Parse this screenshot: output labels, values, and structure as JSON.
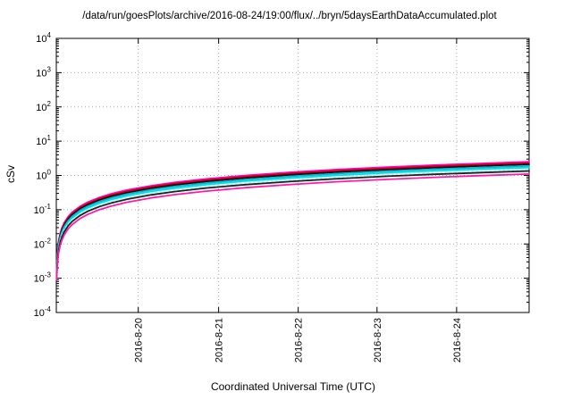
{
  "chart_data": {
    "type": "line",
    "title": "/data/run/goesPlots/archive/2016-08-24/19:00/flux/../bryn/5daysEarthDataAccumulated.plot",
    "xlabel": "Coordinated Universal Time (UTC)",
    "ylabel": "cSv",
    "y_scale": "log10",
    "ylim_exponents": [
      -4,
      4
    ],
    "y_ticks_exponents": [
      4,
      3,
      2,
      1,
      0,
      -1,
      -2,
      -3,
      -4
    ],
    "x_domain_days": [
      0,
      6
    ],
    "x_ticks": [
      {
        "t": 1.04,
        "label": "2016-8-20"
      },
      {
        "t": 2.06,
        "label": "2016-8-21"
      },
      {
        "t": 3.07,
        "label": "2016-8-22"
      },
      {
        "t": 4.07,
        "label": "2016-8-23"
      },
      {
        "t": 5.08,
        "label": "2016-8-24"
      }
    ],
    "grid": true,
    "legend": "none",
    "x_days": [
      0.005,
      0.01,
      0.02,
      0.03,
      0.05,
      0.07,
      0.1,
      0.15,
      0.2,
      0.3,
      0.4,
      0.55,
      0.7,
      0.9,
      1.2,
      1.5,
      1.9,
      2.4,
      3.0,
      3.6,
      4.2,
      4.8,
      5.4,
      6.0
    ],
    "series": [
      {
        "name": "upper-magenta",
        "color": "#ff00c8",
        "dash": null,
        "values": [
          0.00208,
          0.00417,
          0.00833,
          0.0125,
          0.0208,
          0.0292,
          0.0417,
          0.0625,
          0.0833,
          0.125,
          0.167,
          0.229,
          0.292,
          0.375,
          0.5,
          0.625,
          0.792,
          1.0,
          1.25,
          1.5,
          1.75,
          2.0,
          2.25,
          2.5
        ]
      },
      {
        "name": "red",
        "color": "#d40000",
        "dash": null,
        "values": [
          0.00192,
          0.00383,
          0.00767,
          0.0115,
          0.0192,
          0.0268,
          0.0383,
          0.0575,
          0.0767,
          0.115,
          0.153,
          0.211,
          0.268,
          0.345,
          0.46,
          0.575,
          0.728,
          0.92,
          1.15,
          1.38,
          1.61,
          1.84,
          2.07,
          2.3
        ]
      },
      {
        "name": "upper-black",
        "color": "#101010",
        "dash": null,
        "values": [
          0.00175,
          0.0035,
          0.007,
          0.0105,
          0.0175,
          0.0245,
          0.035,
          0.0525,
          0.07,
          0.105,
          0.14,
          0.1925,
          0.245,
          0.315,
          0.42,
          0.525,
          0.665,
          0.84,
          1.05,
          1.26,
          1.47,
          1.68,
          1.89,
          2.1
        ]
      },
      {
        "name": "cyan",
        "color": "#00b4d8",
        "dash": null,
        "values": [
          0.00158,
          0.00317,
          0.00633,
          0.0095,
          0.0158,
          0.0222,
          0.0317,
          0.0475,
          0.0633,
          0.095,
          0.127,
          0.174,
          0.222,
          0.285,
          0.38,
          0.475,
          0.602,
          0.76,
          0.95,
          1.14,
          1.33,
          1.52,
          1.71,
          1.9
        ]
      },
      {
        "name": "bright-cyan",
        "color": "#00e0e0",
        "dash": null,
        "values": [
          0.00142,
          0.00283,
          0.00567,
          0.0085,
          0.0142,
          0.0198,
          0.0283,
          0.0425,
          0.0567,
          0.085,
          0.113,
          0.156,
          0.198,
          0.255,
          0.34,
          0.425,
          0.538,
          0.68,
          0.85,
          1.02,
          1.19,
          1.36,
          1.53,
          1.7
        ]
      },
      {
        "name": "pale-dotted",
        "color": "#bfeff2",
        "dash": "2,3",
        "values": [
          0.00125,
          0.0025,
          0.005,
          0.0075,
          0.0125,
          0.0175,
          0.025,
          0.0375,
          0.05,
          0.075,
          0.1,
          0.1375,
          0.175,
          0.225,
          0.3,
          0.375,
          0.475,
          0.6,
          0.75,
          0.9,
          1.05,
          1.2,
          1.35,
          1.5
        ]
      },
      {
        "name": "lower-black",
        "color": "#202020",
        "dash": null,
        "values": [
          0.00113,
          0.00225,
          0.0045,
          0.00675,
          0.0113,
          0.0158,
          0.0225,
          0.0338,
          0.045,
          0.0675,
          0.09,
          0.124,
          0.158,
          0.203,
          0.27,
          0.338,
          0.428,
          0.54,
          0.675,
          0.81,
          0.945,
          1.08,
          1.215,
          1.35
        ]
      },
      {
        "name": "lower-magenta",
        "color": "#ff1aa6",
        "dash": null,
        "values": [
          0.000917,
          0.00183,
          0.00367,
          0.0055,
          0.00917,
          0.0128,
          0.0183,
          0.0275,
          0.0367,
          0.055,
          0.0733,
          0.101,
          0.128,
          0.165,
          0.22,
          0.275,
          0.348,
          0.44,
          0.55,
          0.66,
          0.77,
          0.88,
          0.99,
          1.1
        ]
      }
    ]
  }
}
